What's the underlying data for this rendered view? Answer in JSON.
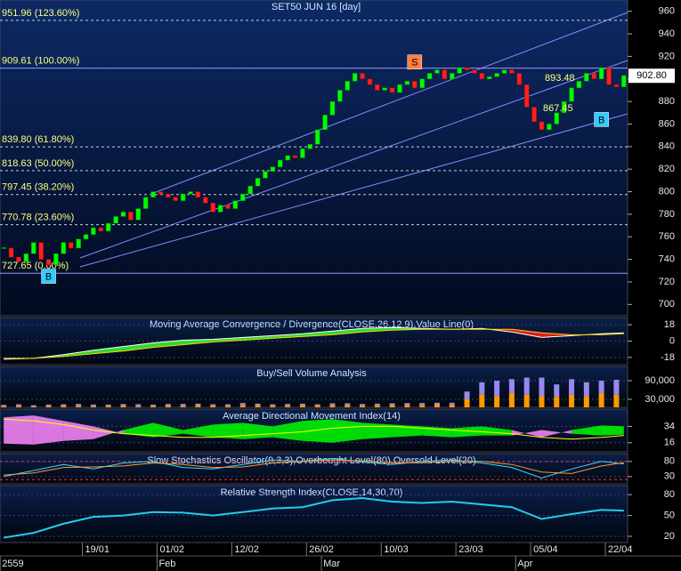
{
  "chart_data": [
    {
      "type": "candlestick",
      "title": "SET50 JUN 16  [day]",
      "values": [
        750,
        742,
        738,
        745,
        755,
        740,
        735,
        745,
        755,
        750,
        758,
        762,
        768,
        765,
        772,
        778,
        782,
        775,
        785,
        795,
        800,
        798,
        795,
        792,
        798,
        800,
        795,
        790,
        782,
        788,
        785,
        792,
        798,
        805,
        812,
        818,
        822,
        828,
        832,
        830,
        838,
        842,
        855,
        868,
        880,
        890,
        898,
        905,
        900,
        895,
        890,
        892,
        888,
        895,
        898,
        892,
        900,
        905,
        908,
        900,
        905,
        910,
        908,
        905,
        900,
        902,
        905,
        908,
        905,
        895,
        875,
        862,
        855,
        860,
        870,
        880,
        892,
        898,
        905,
        900,
        910,
        895,
        893,
        903
      ],
      "up_color": "#00ff00",
      "down_color": "#ff2020",
      "xlim": [
        -0.5,
        83.5
      ],
      "xticks": [
        {
          "value": 11,
          "label": "19/01"
        },
        {
          "value": 21,
          "label": "01/02"
        },
        {
          "value": 31,
          "label": "12/02"
        },
        {
          "value": 41,
          "label": "26/02"
        },
        {
          "value": 51,
          "label": "10/03"
        },
        {
          "value": 61,
          "label": "23/03"
        },
        {
          "value": 71,
          "label": "05/04"
        },
        {
          "value": 81,
          "label": "22/04"
        }
      ],
      "period_ticks": [
        {
          "value": 0,
          "label": "2559"
        },
        {
          "value": 21,
          "label": "Feb"
        },
        {
          "value": 43,
          "label": "Mar"
        },
        {
          "value": 69,
          "label": "Apr"
        }
      ],
      "ylim": [
        690,
        970
      ],
      "yticks": [
        700,
        720,
        740,
        760,
        780,
        800,
        820,
        840,
        860,
        880,
        900,
        920,
        940,
        960
      ],
      "fib_levels": [
        {
          "value": 951.96,
          "label": "951.96 (123.60%)",
          "style": "dashed"
        },
        {
          "value": 909.61,
          "label": "909.61 (100.00%)",
          "style": "solid"
        },
        {
          "value": 839.8,
          "label": "839.80 (61.80%)",
          "style": "dashed"
        },
        {
          "value": 818.63,
          "label": "818.63 (50.00%)",
          "style": "dashed"
        },
        {
          "value": 797.45,
          "label": "797.45 (38.20%)",
          "style": "dashed"
        },
        {
          "value": 770.78,
          "label": "770.78 (23.60%)",
          "style": "dashed"
        },
        {
          "value": 727.65,
          "label": "727.65 (0.00%)",
          "style": "solid"
        }
      ],
      "signals": [
        {
          "label": "B",
          "x": 6,
          "y": 725,
          "color": "#33ccff"
        },
        {
          "label": "S",
          "x": 55,
          "y": 915,
          "color": "#ff7f3f"
        },
        {
          "label": "B",
          "x": 80,
          "y": 864,
          "color": "#33ccff"
        }
      ],
      "annotations": [
        "893.48",
        "867.45"
      ],
      "last": {
        "value": 902.8,
        "label": "902.80"
      }
    },
    {
      "type": "macd",
      "title": "Moving Average Convergence / Divergence(CLOSE,26,12,9),Value Line(0)",
      "x": [
        0,
        4,
        8,
        12,
        16,
        20,
        24,
        28,
        32,
        36,
        40,
        44,
        48,
        52,
        56,
        60,
        64,
        68,
        72,
        76,
        80,
        83
      ],
      "series": [
        {
          "color": "#ffffff",
          "values": [
            -20,
            -19,
            -15,
            -10,
            -6,
            -2,
            1,
            2,
            4,
            6,
            8,
            11,
            14,
            15,
            14,
            13,
            14,
            10,
            4,
            6,
            8,
            9
          ]
        },
        {
          "color": "#ffcc00",
          "values": [
            -19,
            -19,
            -17,
            -14,
            -11,
            -7,
            -4,
            -1,
            1,
            3,
            5,
            7,
            10,
            12,
            13,
            13,
            13,
            13,
            9,
            7,
            7,
            8
          ]
        }
      ],
      "up_color": "#33ff33",
      "down_color": "#ff2020",
      "ylim": [
        -26,
        26
      ],
      "yticks": [
        18,
        0,
        -18
      ]
    },
    {
      "type": "stacked_bar",
      "title": "Buy/Sell Volume Analysis",
      "x": [
        0,
        2,
        4,
        6,
        8,
        10,
        12,
        14,
        16,
        18,
        20,
        22,
        24,
        26,
        28,
        30,
        32,
        34,
        36,
        38,
        40,
        42,
        44,
        46,
        48,
        50,
        52,
        54,
        56,
        58,
        60,
        62,
        64,
        66,
        68,
        70,
        72,
        74,
        76,
        78,
        80,
        82
      ],
      "series": [
        {
          "color": "#ff9900",
          "values": [
            8000,
            9000,
            7000,
            8000,
            10000,
            9000,
            8000,
            9000,
            10000,
            8000,
            9000,
            10000,
            9000,
            11000,
            10000,
            9000,
            12000,
            11000,
            10000,
            9000,
            11000,
            10000,
            12000,
            11000,
            10000,
            12000,
            11000,
            13000,
            12000,
            14000,
            13000,
            30000,
            45000,
            40000,
            50000,
            45000,
            40000,
            38000,
            45000,
            40000,
            50000,
            45000
          ]
        },
        {
          "color": "#9988ee",
          "values": [
            4000,
            5000,
            4000,
            5000,
            4000,
            6000,
            5000,
            4000,
            5000,
            6000,
            4000,
            5000,
            6000,
            5000,
            4000,
            5000,
            6000,
            5000,
            4000,
            6000,
            5000,
            4000,
            5000,
            6000,
            5000,
            4000,
            6000,
            5000,
            6000,
            5000,
            6000,
            25000,
            40000,
            50000,
            45000,
            55000,
            60000,
            40000,
            50000,
            45000,
            40000,
            48000
          ]
        }
      ],
      "ylim": [
        4000,
        136000
      ],
      "yticks": [
        {
          "value": 90000,
          "label": "90,000"
        },
        {
          "value": 30000,
          "label": "30,000"
        }
      ]
    },
    {
      "type": "adx",
      "title": "Average Directional Movement Index(14)",
      "x": [
        0,
        4,
        8,
        12,
        16,
        20,
        24,
        28,
        32,
        36,
        40,
        44,
        48,
        52,
        56,
        60,
        64,
        68,
        72,
        76,
        80,
        83
      ],
      "series": [
        {
          "color": "#00ff00",
          "values": [
            15,
            14,
            18,
            20,
            30,
            38,
            30,
            36,
            38,
            34,
            40,
            42,
            38,
            36,
            34,
            32,
            34,
            30,
            22,
            30,
            35,
            34
          ]
        },
        {
          "color": "#ff88ff",
          "values": [
            44,
            46,
            40,
            34,
            26,
            22,
            26,
            22,
            20,
            22,
            18,
            16,
            20,
            22,
            24,
            22,
            24,
            24,
            30,
            26,
            24,
            25
          ]
        },
        {
          "color": "#ffff00",
          "values": [
            42,
            40,
            36,
            30,
            26,
            24,
            22,
            22,
            24,
            26,
            28,
            32,
            34,
            34,
            32,
            30,
            28,
            26,
            22,
            20,
            22,
            24
          ]
        }
      ],
      "ylim": [
        6,
        53
      ],
      "yticks": [
        34,
        16
      ]
    },
    {
      "type": "stochastic",
      "title": "Slow Stochastics Oscillator(9,3,3),Overbought Level(80),Oversold Level(20)",
      "x": [
        0,
        4,
        8,
        12,
        16,
        20,
        24,
        28,
        32,
        36,
        40,
        44,
        48,
        52,
        56,
        60,
        64,
        68,
        72,
        76,
        80,
        83
      ],
      "series": [
        {
          "color": "#33ddff",
          "values": [
            30,
            50,
            70,
            55,
            75,
            80,
            60,
            55,
            70,
            85,
            80,
            90,
            78,
            70,
            80,
            85,
            75,
            60,
            25,
            55,
            80,
            72
          ]
        },
        {
          "color": "#ff9933",
          "values": [
            35,
            42,
            60,
            62,
            65,
            75,
            70,
            60,
            62,
            75,
            80,
            85,
            82,
            75,
            76,
            80,
            80,
            70,
            45,
            40,
            65,
            76
          ]
        }
      ],
      "levels": [
        80,
        20
      ],
      "level_color": "#ff3030",
      "ylim": [
        6,
        106
      ],
      "yticks": [
        80,
        30
      ]
    },
    {
      "type": "line",
      "title": "Relative Strength Index(CLOSE,14,30,70)",
      "x": [
        0,
        4,
        8,
        12,
        16,
        20,
        24,
        28,
        32,
        36,
        40,
        44,
        48,
        52,
        56,
        60,
        64,
        68,
        72,
        76,
        80,
        83
      ],
      "series": [
        {
          "color": "#22ccee",
          "values": [
            18,
            25,
            38,
            48,
            50,
            55,
            54,
            50,
            55,
            60,
            62,
            72,
            75,
            70,
            68,
            70,
            66,
            62,
            45,
            52,
            58,
            57
          ]
        }
      ],
      "ylim": [
        11,
        93
      ],
      "yticks": [
        80,
        50,
        20
      ]
    }
  ]
}
